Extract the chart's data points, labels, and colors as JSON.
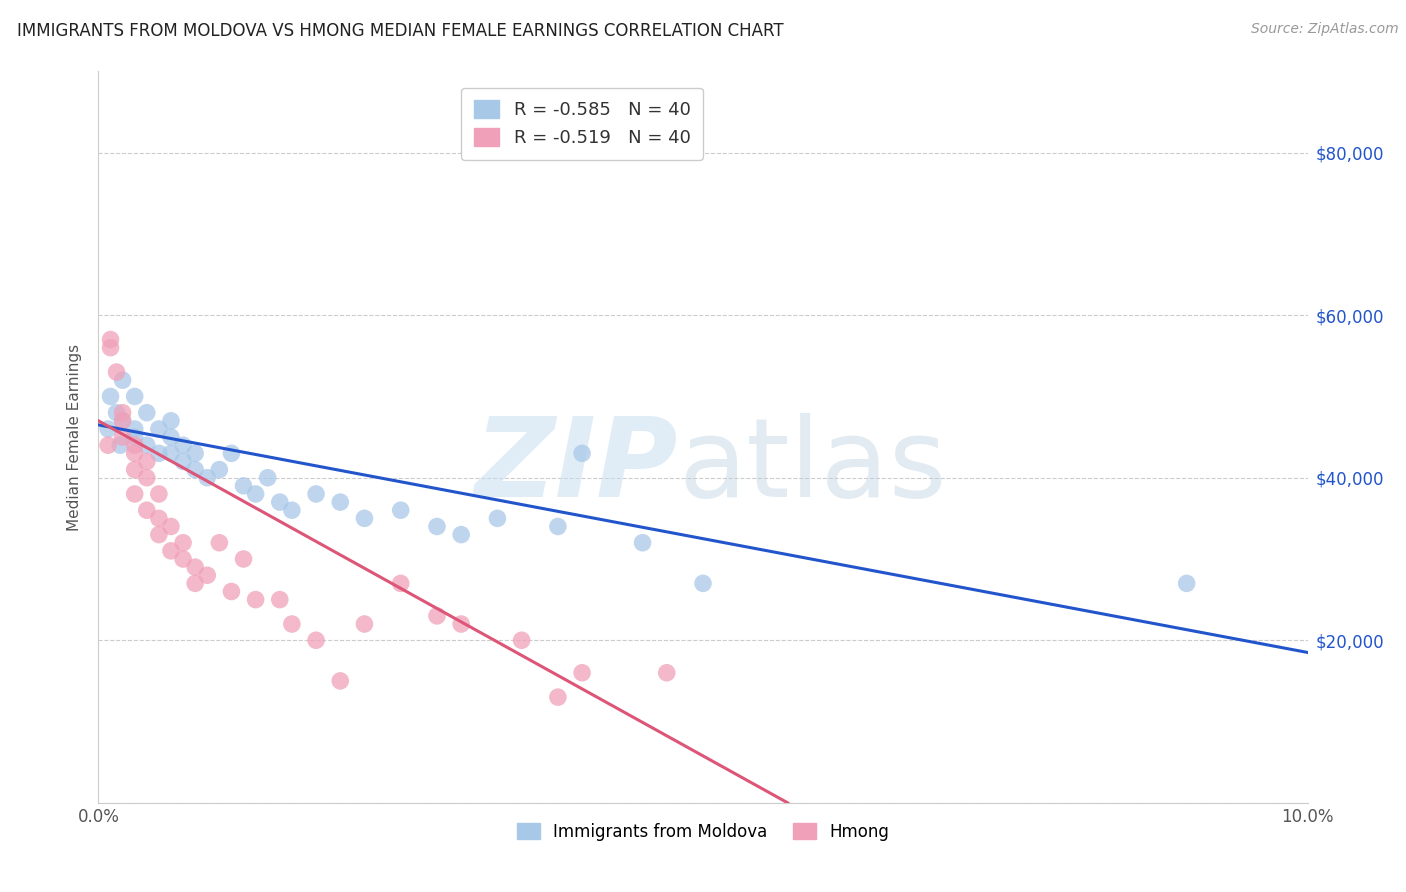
{
  "title": "IMMIGRANTS FROM MOLDOVA VS HMONG MEDIAN FEMALE EARNINGS CORRELATION CHART",
  "source": "Source: ZipAtlas.com",
  "ylabel": "Median Female Earnings",
  "right_ytick_labels": [
    "$20,000",
    "$40,000",
    "$60,000",
    "$80,000"
  ],
  "right_ytick_values": [
    20000,
    40000,
    60000,
    80000
  ],
  "legend_moldova": "R = -0.585   N = 40",
  "legend_hmong": "R = -0.519   N = 40",
  "legend_moldova_label": "Immigrants from Moldova",
  "legend_hmong_label": "Hmong",
  "moldova_color": "#a8c8e8",
  "hmong_color": "#f0a0b8",
  "moldova_line_color": "#2255cc",
  "hmong_line_color": "#dd5577",
  "xlim": [
    0.0,
    0.1
  ],
  "ylim": [
    0,
    90000
  ],
  "moldova_x": [
    0.0008,
    0.001,
    0.0015,
    0.0018,
    0.002,
    0.002,
    0.003,
    0.003,
    0.003,
    0.004,
    0.004,
    0.005,
    0.005,
    0.006,
    0.006,
    0.006,
    0.007,
    0.007,
    0.008,
    0.008,
    0.009,
    0.01,
    0.011,
    0.012,
    0.013,
    0.014,
    0.015,
    0.016,
    0.018,
    0.02,
    0.022,
    0.025,
    0.028,
    0.03,
    0.033,
    0.038,
    0.04,
    0.045,
    0.05,
    0.09
  ],
  "moldova_y": [
    46000,
    50000,
    48000,
    44000,
    52000,
    47000,
    46000,
    50000,
    45000,
    44000,
    48000,
    43000,
    46000,
    45000,
    43000,
    47000,
    44000,
    42000,
    43000,
    41000,
    40000,
    41000,
    43000,
    39000,
    38000,
    40000,
    37000,
    36000,
    38000,
    37000,
    35000,
    36000,
    34000,
    33000,
    35000,
    34000,
    43000,
    32000,
    27000,
    27000
  ],
  "hmong_x": [
    0.0008,
    0.001,
    0.001,
    0.0015,
    0.002,
    0.002,
    0.002,
    0.003,
    0.003,
    0.003,
    0.003,
    0.004,
    0.004,
    0.004,
    0.005,
    0.005,
    0.005,
    0.006,
    0.006,
    0.007,
    0.007,
    0.008,
    0.008,
    0.009,
    0.01,
    0.011,
    0.012,
    0.013,
    0.015,
    0.016,
    0.018,
    0.02,
    0.022,
    0.025,
    0.028,
    0.03,
    0.035,
    0.038,
    0.04,
    0.047
  ],
  "hmong_y": [
    44000,
    57000,
    56000,
    53000,
    48000,
    45000,
    47000,
    44000,
    43000,
    41000,
    38000,
    42000,
    40000,
    36000,
    38000,
    35000,
    33000,
    34000,
    31000,
    32000,
    30000,
    29000,
    27000,
    28000,
    32000,
    26000,
    30000,
    25000,
    25000,
    22000,
    20000,
    15000,
    22000,
    27000,
    23000,
    22000,
    20000,
    13000,
    16000,
    16000
  ],
  "moldova_line_x": [
    0.0,
    0.1
  ],
  "moldova_line_y": [
    46500,
    18500
  ],
  "hmong_line_x": [
    0.0,
    0.057
  ],
  "hmong_line_y": [
    47000,
    0
  ]
}
